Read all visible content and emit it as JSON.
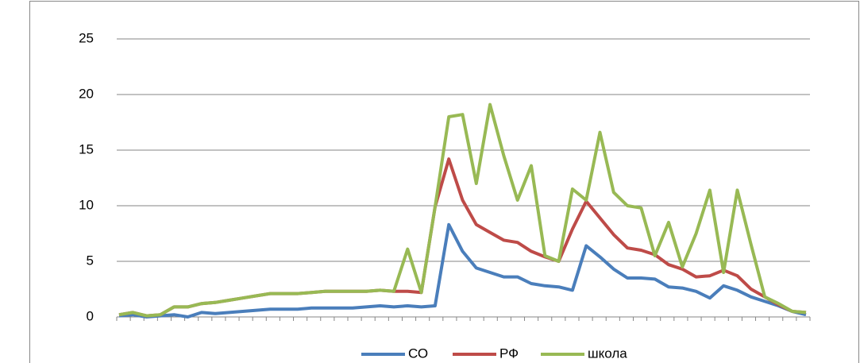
{
  "chart_data": {
    "type": "line",
    "categories": [
      null,
      null,
      null,
      null,
      null,
      null,
      null,
      null,
      null,
      null,
      null,
      null,
      null,
      null,
      null,
      null,
      null,
      null,
      null,
      null,
      null,
      null,
      null,
      null,
      null,
      null,
      null,
      null,
      null,
      null,
      null,
      null,
      null,
      null,
      null,
      null,
      null,
      null,
      null,
      null,
      null,
      null,
      null,
      null,
      null,
      null,
      null,
      null,
      null,
      null,
      null
    ],
    "series": [
      {
        "name": "СО",
        "color": "#4a7ebb",
        "values": [
          0.1,
          0.2,
          0,
          0.1,
          0.2,
          0,
          0.4,
          0.3,
          0.4,
          0.5,
          0.6,
          0.7,
          0.7,
          0.7,
          0.8,
          0.8,
          0.8,
          0.8,
          0.9,
          1,
          0.9,
          1,
          0.9,
          1,
          8.3,
          5.9,
          4.4,
          4,
          3.6,
          3.6,
          3,
          2.8,
          2.7,
          2.4,
          6.4,
          5.4,
          4.3,
          3.5,
          3.5,
          3.4,
          2.7,
          2.6,
          2.3,
          1.7,
          2.8,
          2.4,
          1.8,
          1.4,
          1,
          0.5,
          0.2
        ]
      },
      {
        "name": "РФ",
        "color": "#be4b48",
        "values": [
          0.2,
          0.4,
          0.1,
          0.2,
          0.9,
          0.9,
          1.2,
          1.3,
          1.5,
          1.7,
          1.9,
          2.1,
          2.1,
          2.1,
          2.2,
          2.3,
          2.3,
          2.3,
          2.3,
          2.4,
          2.3,
          2.3,
          2.2,
          9.9,
          14.2,
          10.5,
          8.3,
          7.6,
          6.9,
          6.7,
          5.9,
          5.4,
          5,
          7.9,
          10.4,
          8.9,
          7.4,
          6.2,
          6,
          5.6,
          4.7,
          4.3,
          3.6,
          3.7,
          4.2,
          3.7,
          2.5,
          1.8,
          1.1,
          0.5,
          0.4
        ]
      },
      {
        "name": "школа",
        "color": "#98b954",
        "values": [
          0.2,
          0.4,
          0.1,
          0.2,
          0.9,
          0.9,
          1.2,
          1.3,
          1.5,
          1.7,
          1.9,
          2.1,
          2.1,
          2.1,
          2.2,
          2.3,
          2.3,
          2.3,
          2.3,
          2.4,
          2.3,
          6.1,
          2.2,
          9.9,
          18,
          18.2,
          12,
          19.1,
          14.5,
          10.5,
          13.6,
          5.5,
          5,
          11.5,
          10.5,
          16.6,
          11.2,
          10,
          9.8,
          5.5,
          8.5,
          4.5,
          7.5,
          11.4,
          4,
          11.4,
          6.5,
          1.8,
          1.2,
          0.5,
          0.4
        ]
      }
    ],
    "ylim": [
      0,
      25
    ],
    "yticks": [
      0,
      5,
      10,
      15,
      20,
      25
    ],
    "grid": true,
    "legend": "bottom"
  }
}
